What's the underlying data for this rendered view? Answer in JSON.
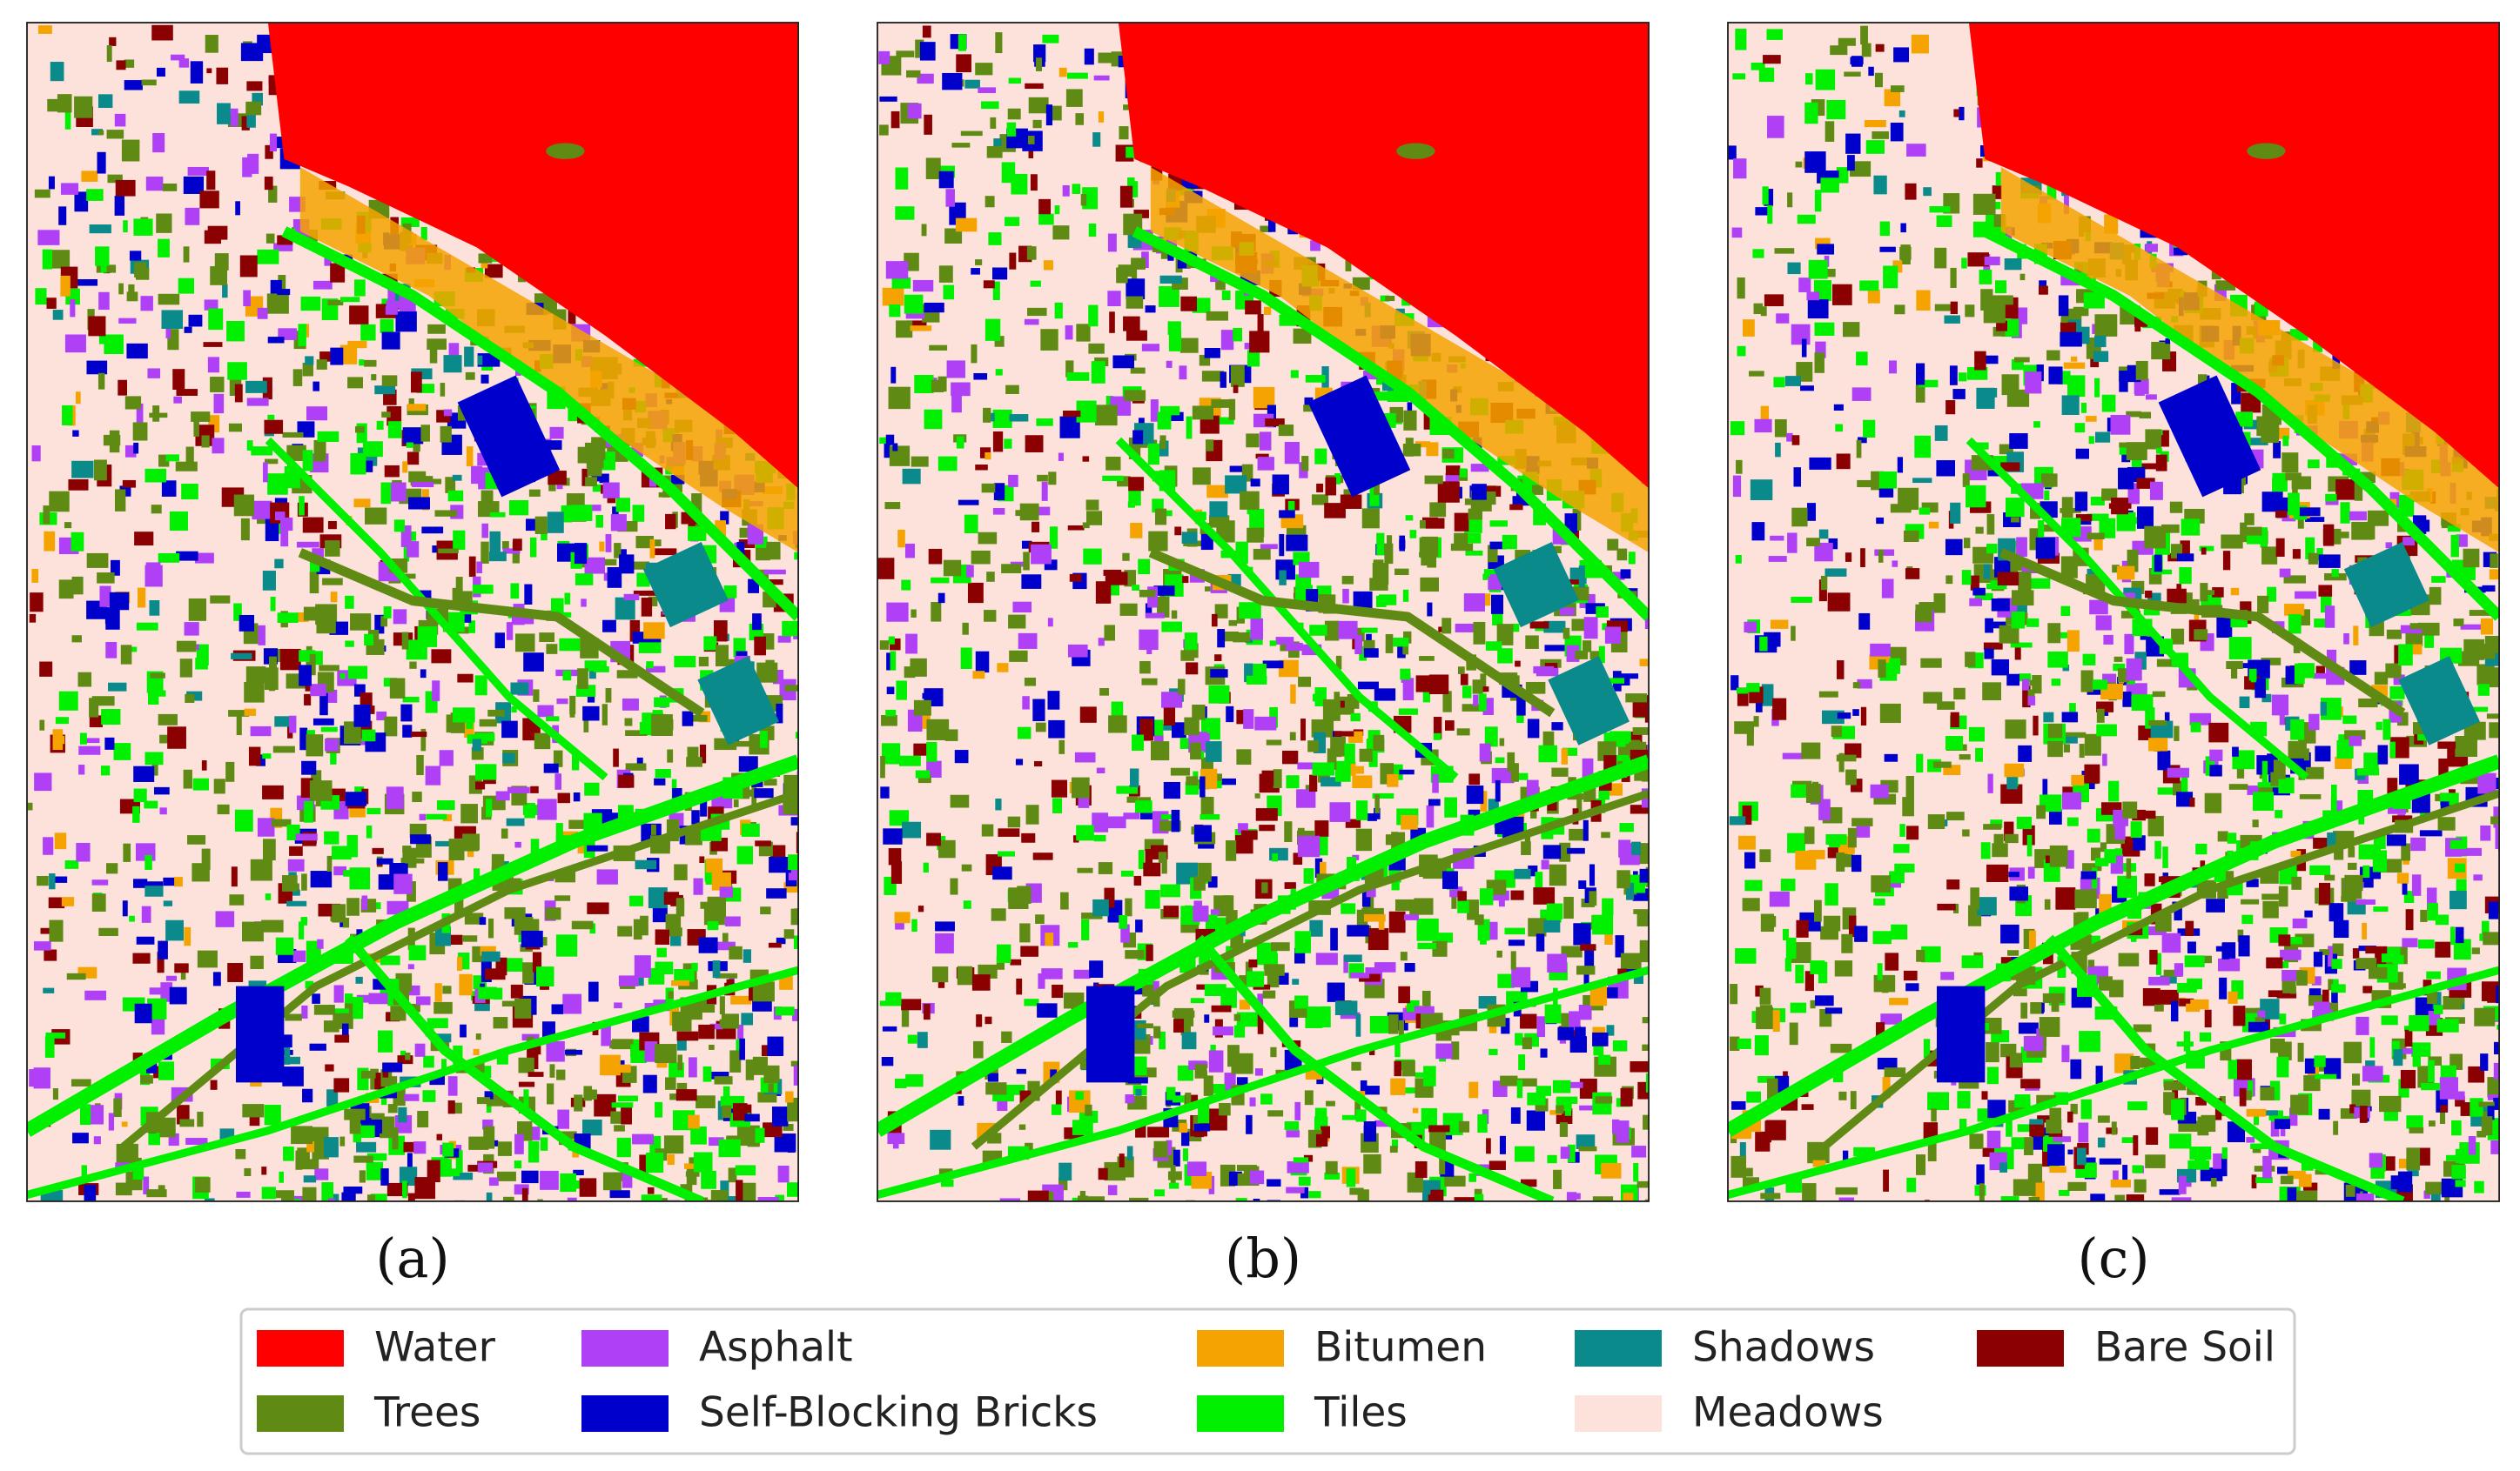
{
  "panels": [
    {
      "label": "(a)"
    },
    {
      "label": "(b)"
    },
    {
      "label": "(c)"
    }
  ],
  "legend": [
    {
      "name": "Water",
      "color": "#ff0000"
    },
    {
      "name": "Trees",
      "color": "#5f8a14"
    },
    {
      "name": "Asphalt",
      "color": "#b040f5"
    },
    {
      "name": "Self-Blocking Bricks",
      "color": "#0000cd"
    },
    {
      "name": "Bitumen",
      "color": "#f5a300"
    },
    {
      "name": "Tiles",
      "color": "#00f000"
    },
    {
      "name": "Shadows",
      "color": "#0a8a8a"
    },
    {
      "name": "Meadows",
      "color": "#fde2dc"
    },
    {
      "name": "Bare Soil",
      "color": "#8b0000"
    }
  ]
}
